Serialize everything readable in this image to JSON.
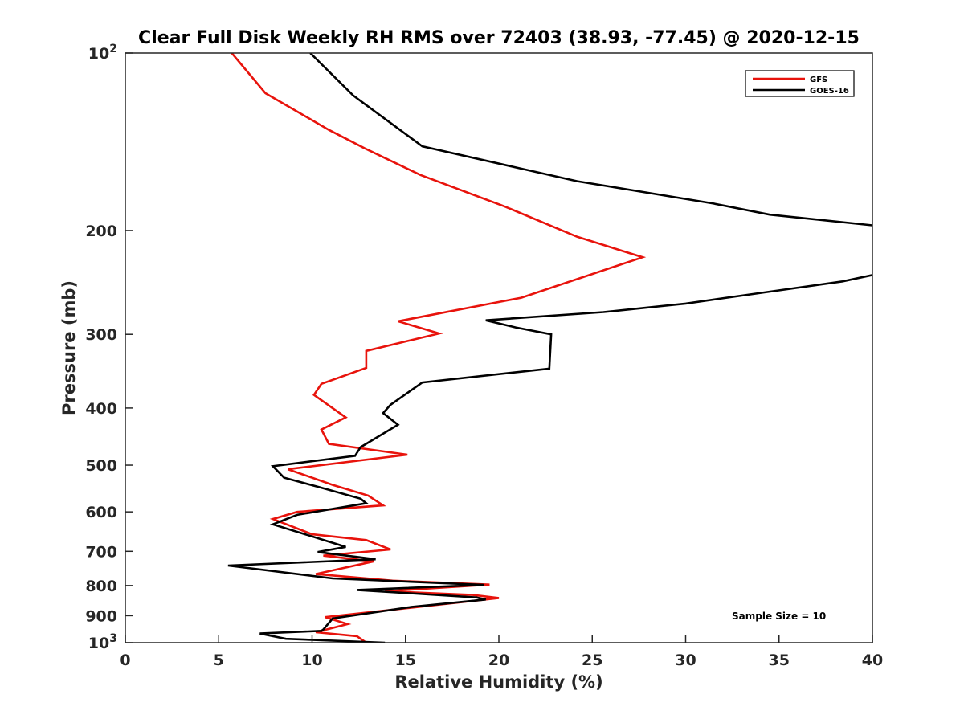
{
  "chart_data": {
    "type": "line",
    "title": "Clear Full Disk Weekly RH RMS over 72403 (38.93, -77.45) @ 2020-12-15",
    "xlabel": "Relative Humidity (%)",
    "ylabel": "Pressure (mb)",
    "xlim": [
      0,
      40
    ],
    "ylim": [
      1000,
      100
    ],
    "yscale": "log",
    "y_reversed": true,
    "grid": false,
    "legend_position": "top-right",
    "x_ticks": [
      {
        "value": 0,
        "label": "0"
      },
      {
        "value": 5,
        "label": "5"
      },
      {
        "value": 10,
        "label": "10"
      },
      {
        "value": 15,
        "label": "15"
      },
      {
        "value": 20,
        "label": "20"
      },
      {
        "value": 25,
        "label": "25"
      },
      {
        "value": 30,
        "label": "30"
      },
      {
        "value": 35,
        "label": "35"
      },
      {
        "value": 40,
        "label": "40"
      }
    ],
    "y_ticks": [
      {
        "value": 100,
        "label": "10",
        "sup": "2"
      },
      {
        "value": 200,
        "label": "200",
        "sup": ""
      },
      {
        "value": 300,
        "label": "300",
        "sup": ""
      },
      {
        "value": 400,
        "label": "400",
        "sup": ""
      },
      {
        "value": 500,
        "label": "500",
        "sup": ""
      },
      {
        "value": 600,
        "label": "600",
        "sup": ""
      },
      {
        "value": 700,
        "label": "700",
        "sup": ""
      },
      {
        "value": 800,
        "label": "800",
        "sup": ""
      },
      {
        "value": 900,
        "label": "900",
        "sup": ""
      },
      {
        "value": 1000,
        "label": "10",
        "sup": "3"
      }
    ],
    "annotation": "Sample Size = 10",
    "series": [
      {
        "name": "GFS",
        "color": "#e8130c",
        "points": [
          [
            5.7,
            100
          ],
          [
            7.5,
            117
          ],
          [
            10.9,
            135
          ],
          [
            12.8,
            145
          ],
          [
            15.8,
            161
          ],
          [
            20.3,
            182
          ],
          [
            24.2,
            205
          ],
          [
            27.7,
            222
          ],
          [
            25.0,
            237
          ],
          [
            21.2,
            260
          ],
          [
            14.6,
            285
          ],
          [
            16.8,
            299
          ],
          [
            12.9,
            320
          ],
          [
            12.9,
            342
          ],
          [
            10.5,
            364
          ],
          [
            10.1,
            380
          ],
          [
            11.8,
            415
          ],
          [
            10.5,
            435
          ],
          [
            10.9,
            460
          ],
          [
            15.1,
            480
          ],
          [
            8.7,
            508
          ],
          [
            11.1,
            540
          ],
          [
            13.0,
            563
          ],
          [
            13.8,
            585
          ],
          [
            9.2,
            600
          ],
          [
            7.9,
            617
          ],
          [
            10.0,
            655
          ],
          [
            12.9,
            670
          ],
          [
            14.2,
            695
          ],
          [
            10.6,
            712
          ],
          [
            13.3,
            728
          ],
          [
            10.2,
            765
          ],
          [
            14.3,
            785
          ],
          [
            19.5,
            797
          ],
          [
            13.9,
            818
          ],
          [
            18.6,
            830
          ],
          [
            20.0,
            840
          ],
          [
            17.8,
            855
          ],
          [
            10.7,
            905
          ],
          [
            11.9,
            930
          ],
          [
            10.2,
            960
          ],
          [
            12.4,
            975
          ],
          [
            12.9,
            1000
          ]
        ]
      },
      {
        "name": "GOES-16",
        "color": "#000000",
        "points": [
          [
            9.9,
            100
          ],
          [
            12.2,
            118
          ],
          [
            15.9,
            144
          ],
          [
            24.2,
            165
          ],
          [
            31.5,
            180
          ],
          [
            34.5,
            188
          ],
          [
            40.0,
            196
          ],
          [
            41.5,
            200
          ],
          [
            40.0,
            238
          ],
          [
            38.4,
            244
          ],
          [
            34.1,
            255
          ],
          [
            30.0,
            266
          ],
          [
            25.6,
            275
          ],
          [
            19.3,
            284
          ],
          [
            20.9,
            292
          ],
          [
            22.8,
            300
          ],
          [
            22.7,
            343
          ],
          [
            15.9,
            362
          ],
          [
            14.2,
            395
          ],
          [
            13.8,
            408
          ],
          [
            14.6,
            427
          ],
          [
            12.6,
            466
          ],
          [
            12.3,
            482
          ],
          [
            7.9,
            502
          ],
          [
            8.5,
            525
          ],
          [
            10.4,
            545
          ],
          [
            12.6,
            570
          ],
          [
            12.9,
            580
          ],
          [
            9.2,
            607
          ],
          [
            7.9,
            630
          ],
          [
            10.9,
            674
          ],
          [
            11.8,
            688
          ],
          [
            10.3,
            702
          ],
          [
            13.4,
            722
          ],
          [
            5.5,
            740
          ],
          [
            11.1,
            778
          ],
          [
            19.2,
            798
          ],
          [
            12.4,
            814
          ],
          [
            18.8,
            838
          ],
          [
            19.3,
            845
          ],
          [
            15.3,
            870
          ],
          [
            11.1,
            910
          ],
          [
            10.6,
            950
          ],
          [
            10.5,
            955
          ],
          [
            7.2,
            965
          ],
          [
            8.6,
            985
          ],
          [
            13.9,
            1000
          ]
        ]
      }
    ]
  }
}
